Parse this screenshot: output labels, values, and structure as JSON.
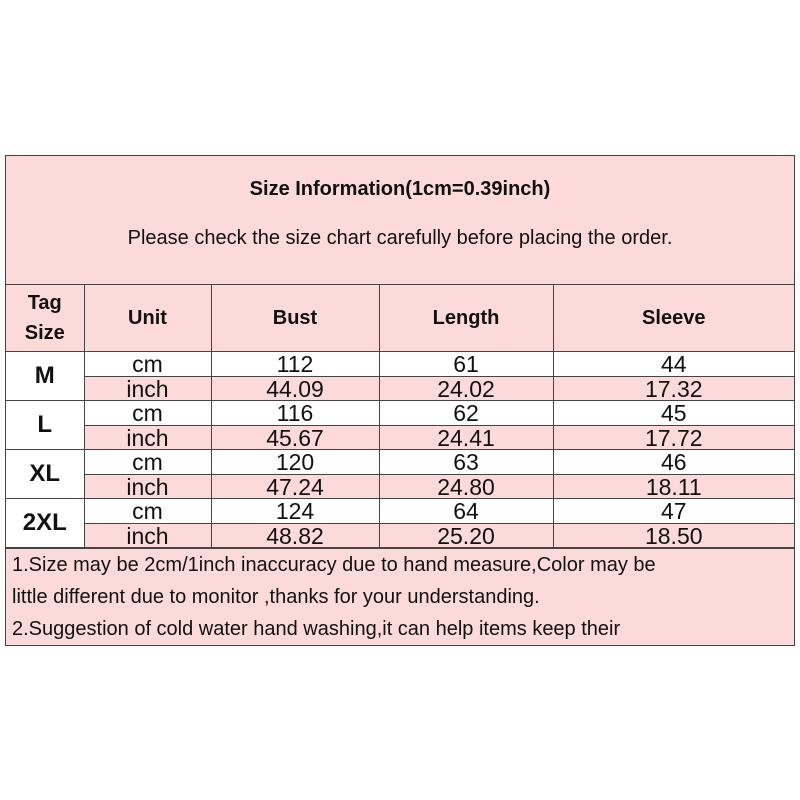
{
  "header": {
    "title": "Size Information(1cm=0.39inch)",
    "subtitle": "Please check the size chart carefully before placing the order."
  },
  "columns": [
    "Tag Size",
    "Unit",
    "Bust",
    "Length",
    "Sleeve"
  ],
  "sizes": [
    {
      "tag": "M",
      "cm": {
        "unit": "cm",
        "bust": "112",
        "length": "61",
        "sleeve": "44"
      },
      "inch": {
        "unit": "inch",
        "bust": "44.09",
        "length": "24.02",
        "sleeve": "17.32"
      }
    },
    {
      "tag": "L",
      "cm": {
        "unit": "cm",
        "bust": "116",
        "length": "62",
        "sleeve": "45"
      },
      "inch": {
        "unit": "inch",
        "bust": "45.67",
        "length": "24.41",
        "sleeve": "17.72"
      }
    },
    {
      "tag": "XL",
      "cm": {
        "unit": "cm",
        "bust": "120",
        "length": "63",
        "sleeve": "46"
      },
      "inch": {
        "unit": "inch",
        "bust": "47.24",
        "length": "24.80",
        "sleeve": "18.11"
      }
    },
    {
      "tag": "2XL",
      "cm": {
        "unit": "cm",
        "bust": "124",
        "length": "64",
        "sleeve": "47"
      },
      "inch": {
        "unit": "inch",
        "bust": "48.82",
        "length": "25.20",
        "sleeve": "18.50"
      }
    }
  ],
  "notes": [
    "1.Size may be 2cm/1inch inaccuracy due to hand measure,Color may be",
    "little different due to monitor ,thanks for your understanding.",
    "2.Suggestion of cold water hand washing,it can help items keep their"
  ],
  "colors": {
    "pink": "#fcdada",
    "border": "#444444"
  }
}
